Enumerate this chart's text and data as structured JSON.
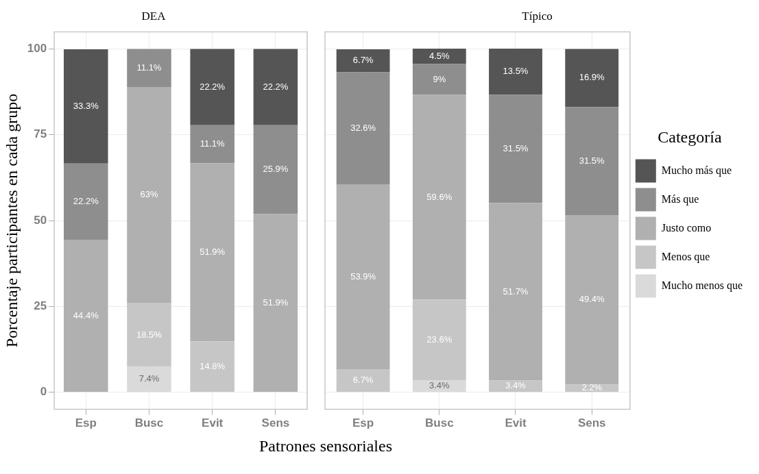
{
  "chart_data": [
    {
      "type": "bar",
      "stacked": true,
      "title": "DEA",
      "ylabel": "Porcentaje participantes en cada grupo",
      "xlabel": "Patrones sensoriales",
      "categories": [
        "Esp",
        "Busc",
        "Evit",
        "Sens"
      ],
      "ylim": [
        -5,
        105
      ],
      "yticks": [
        0,
        25,
        50,
        75,
        100
      ],
      "grid": true,
      "legend": false,
      "series": [
        {
          "color": "#dadada",
          "values": [
            null,
            7.4,
            null,
            null
          ],
          "value_labels": [
            null,
            "7.4%",
            null,
            null
          ]
        },
        {
          "color": "#c6c6c6",
          "values": [
            null,
            18.5,
            14.8,
            null
          ],
          "value_labels": [
            null,
            "18.5%",
            "14.8%",
            null
          ]
        },
        {
          "color": "#b0b0b0",
          "values": [
            44.4,
            63,
            51.9,
            51.9
          ],
          "value_labels": [
            "44.4%",
            "63%",
            "51.9%",
            "51.9%"
          ]
        },
        {
          "color": "#8e8e8e",
          "values": [
            22.2,
            11.1,
            11.1,
            25.9
          ],
          "value_labels": [
            "22.2%",
            "11.1%",
            "11.1%",
            "25.9%"
          ]
        },
        {
          "color": "#555555",
          "values": [
            33.3,
            null,
            22.2,
            22.2
          ],
          "value_labels": [
            "33.3%",
            null,
            "22.2%",
            "22.2%"
          ]
        }
      ]
    },
    {
      "type": "bar",
      "stacked": true,
      "title": "Típico",
      "legend_title": "Categoría",
      "categories": [
        "Esp",
        "Busc",
        "Evit",
        "Sens"
      ],
      "ylim": [
        -5,
        105
      ],
      "yticks": [
        0,
        25,
        50,
        75,
        100
      ],
      "grid": true,
      "legend": "right",
      "tick_labels": "x",
      "series": [
        {
          "name": "Mucho menos que",
          "color": "#dadada",
          "values": [
            null,
            3.4,
            null,
            null
          ],
          "value_labels": [
            null,
            "3.4%",
            null,
            null
          ]
        },
        {
          "name": "Menos que",
          "color": "#c6c6c6",
          "values": [
            6.7,
            23.6,
            3.4,
            2.2
          ],
          "value_labels": [
            "6.7%",
            "23.6%",
            "3.4%",
            "2.2%"
          ]
        },
        {
          "name": "Justo como",
          "color": "#b0b0b0",
          "values": [
            53.9,
            59.6,
            51.7,
            49.4
          ],
          "value_labels": [
            "53.9%",
            "59.6%",
            "51.7%",
            "49.4%"
          ]
        },
        {
          "name": "Más que",
          "color": "#8e8e8e",
          "values": [
            32.6,
            9,
            31.5,
            31.5
          ],
          "value_labels": [
            "32.6%",
            "9%",
            "31.5%",
            "31.5%"
          ]
        },
        {
          "name": "Mucho más que",
          "color": "#555555",
          "values": [
            6.7,
            4.5,
            13.5,
            16.9
          ],
          "value_labels": [
            "6.7%",
            "4.5%",
            "13.5%",
            "16.9%"
          ]
        }
      ]
    }
  ]
}
